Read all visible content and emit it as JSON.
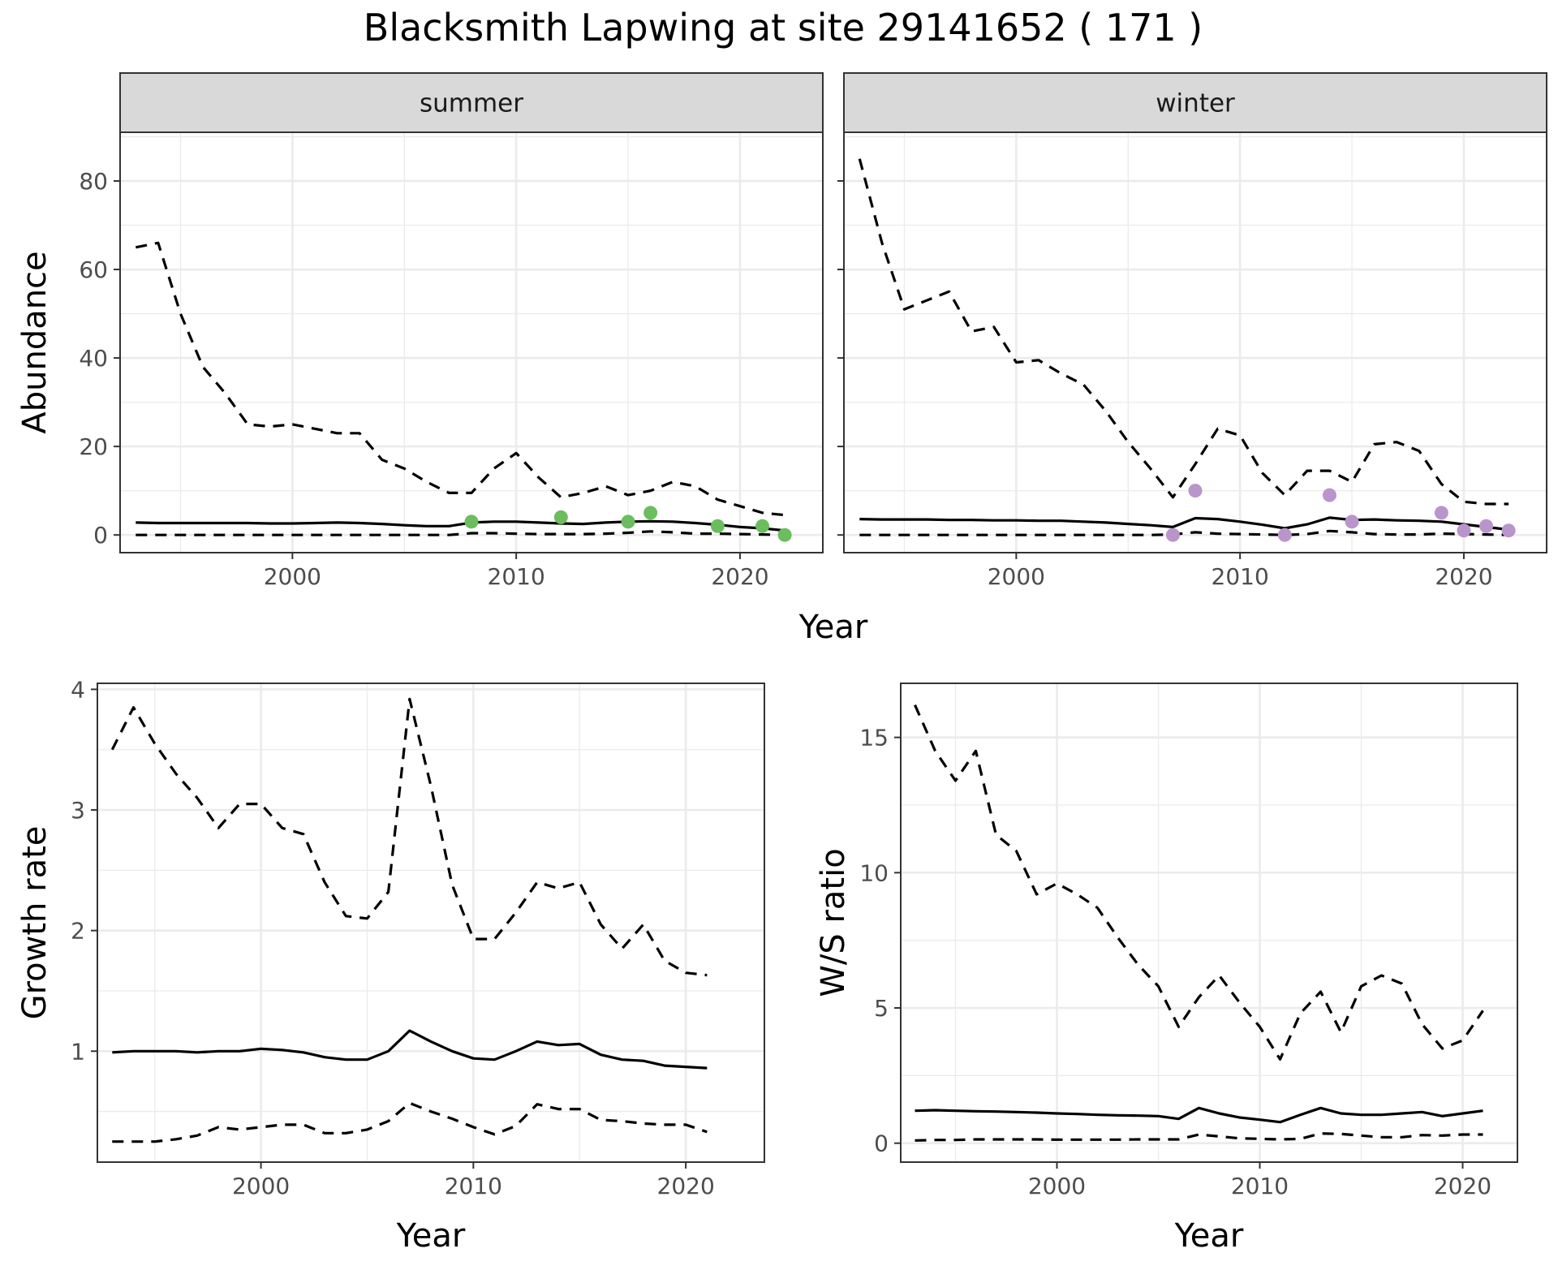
{
  "title": "Blacksmith Lapwing at site 29141652 ( 171 )",
  "colors": {
    "summer_points": "#6bbd5e",
    "winter_points": "#b995cc",
    "lines": "#000000"
  },
  "chart_data": [
    {
      "id": "abundance",
      "type": "line",
      "facets": [
        "summer",
        "winter"
      ],
      "xlabel": "Year",
      "ylabel": "Abundance",
      "xlim": [
        1992.3,
        2023.7
      ],
      "ylim": [
        -4,
        91
      ],
      "xticks": [
        2000,
        2010,
        2020
      ],
      "yticks": [
        0,
        20,
        40,
        60,
        80
      ],
      "grid": true,
      "panels": [
        {
          "facet": "summer",
          "x": [
            1993,
            1994,
            1995,
            1996,
            1997,
            1998,
            1999,
            2000,
            2001,
            2002,
            2003,
            2004,
            2005,
            2006,
            2007,
            2008,
            2009,
            2010,
            2011,
            2012,
            2013,
            2014,
            2015,
            2016,
            2017,
            2018,
            2019,
            2020,
            2021,
            2022
          ],
          "mean": [
            2.8,
            2.7,
            2.7,
            2.7,
            2.7,
            2.7,
            2.6,
            2.6,
            2.7,
            2.8,
            2.7,
            2.5,
            2.2,
            2.0,
            2.0,
            2.8,
            3.0,
            3.0,
            2.8,
            2.6,
            2.5,
            2.8,
            3.0,
            3.1,
            3.0,
            2.7,
            2.3,
            1.8,
            1.5,
            1.0
          ],
          "upper": [
            65,
            66,
            50,
            38,
            32,
            25,
            24.5,
            25,
            24,
            23,
            23,
            17,
            15,
            12,
            9.5,
            9.5,
            15,
            18.5,
            13,
            8.5,
            9.5,
            11,
            9,
            10,
            12,
            11,
            8,
            6.5,
            5,
            4.5
          ],
          "lower": [
            0,
            0,
            0,
            0,
            0,
            0,
            0,
            0,
            0,
            0,
            0,
            0,
            0,
            0,
            0,
            0.4,
            0.4,
            0.3,
            0.2,
            0.2,
            0.2,
            0.3,
            0.5,
            0.8,
            0.6,
            0.3,
            0.3,
            0.2,
            0.1,
            0.0
          ],
          "observed_x": [
            2008,
            2012,
            2015,
            2016,
            2019,
            2021,
            2022
          ],
          "observed_y": [
            3,
            4,
            3,
            5,
            2,
            2,
            0
          ]
        },
        {
          "facet": "winter",
          "x": [
            1993,
            1994,
            1995,
            1996,
            1997,
            1998,
            1999,
            2000,
            2001,
            2002,
            2003,
            2004,
            2005,
            2006,
            2007,
            2008,
            2009,
            2010,
            2011,
            2012,
            2013,
            2014,
            2015,
            2016,
            2017,
            2018,
            2019,
            2020,
            2021,
            2022
          ],
          "mean": [
            3.6,
            3.5,
            3.5,
            3.5,
            3.4,
            3.4,
            3.3,
            3.3,
            3.2,
            3.2,
            3.0,
            2.8,
            2.5,
            2.2,
            1.8,
            3.8,
            3.6,
            3.0,
            2.3,
            1.5,
            2.4,
            3.9,
            3.4,
            3.5,
            3.3,
            3.2,
            3.0,
            2.4,
            1.8,
            1.2
          ],
          "upper": [
            85,
            66,
            51,
            53,
            55,
            46,
            47,
            39,
            39.5,
            36.5,
            34,
            28,
            21,
            15,
            8.5,
            16,
            24,
            22.5,
            14,
            9,
            14.5,
            14.5,
            12,
            20.5,
            21,
            19,
            11.5,
            7.5,
            7,
            7
          ],
          "lower": [
            0,
            0,
            0,
            0,
            0,
            0,
            0,
            0,
            0,
            0,
            0,
            0,
            0,
            0,
            0.1,
            0.6,
            0.3,
            0.2,
            0.1,
            0.0,
            0.2,
            0.9,
            0.6,
            0.2,
            0.1,
            0.1,
            0.3,
            0.2,
            0.1,
            0.0
          ],
          "observed_x": [
            2007,
            2008,
            2012,
            2014,
            2015,
            2019,
            2020,
            2021,
            2022
          ],
          "observed_y": [
            0,
            10,
            0,
            9,
            3,
            5,
            1,
            2,
            1
          ]
        }
      ]
    },
    {
      "id": "growth",
      "type": "line",
      "xlabel": "Year",
      "ylabel": "Growth rate",
      "xlim": [
        1992.3,
        2023.7
      ],
      "ylim": [
        0.08,
        4.05
      ],
      "xticks": [
        2000,
        2010,
        2020
      ],
      "yticks": [
        1,
        2,
        3,
        4
      ],
      "grid": true,
      "x": [
        1993,
        1994,
        1995,
        1996,
        1997,
        1998,
        1999,
        2000,
        2001,
        2002,
        2003,
        2004,
        2005,
        2006,
        2007,
        2008,
        2009,
        2010,
        2011,
        2012,
        2013,
        2014,
        2015,
        2016,
        2017,
        2018,
        2019,
        2020,
        2021
      ],
      "mean": [
        0.99,
        1.0,
        1.0,
        1.0,
        0.99,
        1.0,
        1.0,
        1.02,
        1.01,
        0.99,
        0.95,
        0.93,
        0.93,
        1.0,
        1.17,
        1.08,
        1.0,
        0.94,
        0.93,
        1.0,
        1.08,
        1.05,
        1.06,
        0.97,
        0.93,
        0.92,
        0.88,
        0.87,
        0.86
      ],
      "upper": [
        3.5,
        3.85,
        3.55,
        3.3,
        3.1,
        2.85,
        3.05,
        3.05,
        2.85,
        2.8,
        2.4,
        2.12,
        2.1,
        2.32,
        3.92,
        3.2,
        2.38,
        1.93,
        1.93,
        2.15,
        2.4,
        2.35,
        2.4,
        2.05,
        1.85,
        2.05,
        1.75,
        1.65,
        1.63
      ],
      "lower": [
        0.25,
        0.25,
        0.25,
        0.27,
        0.3,
        0.37,
        0.35,
        0.37,
        0.39,
        0.39,
        0.32,
        0.32,
        0.35,
        0.42,
        0.57,
        0.5,
        0.44,
        0.37,
        0.31,
        0.38,
        0.56,
        0.52,
        0.52,
        0.43,
        0.42,
        0.4,
        0.39,
        0.39,
        0.33
      ]
    },
    {
      "id": "ws_ratio",
      "type": "line",
      "xlabel": "Year",
      "ylabel": "W/S ratio",
      "xlim": [
        1992.3,
        2022.7
      ],
      "ylim": [
        -0.7,
        17
      ],
      "xticks": [
        2000,
        2010,
        2020
      ],
      "yticks": [
        0,
        5,
        10,
        15
      ],
      "grid": true,
      "x": [
        1993,
        1994,
        1995,
        1996,
        1997,
        1998,
        1999,
        2000,
        2001,
        2002,
        2003,
        2004,
        2005,
        2006,
        2007,
        2008,
        2009,
        2010,
        2011,
        2012,
        2013,
        2014,
        2015,
        2016,
        2017,
        2018,
        2019,
        2020,
        2021
      ],
      "mean": [
        1.2,
        1.22,
        1.2,
        1.18,
        1.17,
        1.15,
        1.13,
        1.1,
        1.08,
        1.05,
        1.03,
        1.02,
        1.0,
        0.9,
        1.3,
        1.1,
        0.95,
        0.87,
        0.78,
        1.05,
        1.3,
        1.1,
        1.05,
        1.05,
        1.1,
        1.15,
        1.0,
        1.1,
        1.2
      ],
      "upper": [
        16.2,
        14.5,
        13.4,
        14.5,
        11.4,
        10.8,
        9.2,
        9.6,
        9.2,
        8.7,
        7.6,
        6.6,
        5.8,
        4.3,
        5.4,
        6.2,
        5.2,
        4.3,
        3.1,
        4.8,
        5.6,
        4.1,
        5.8,
        6.2,
        5.9,
        4.4,
        3.5,
        3.8,
        4.9
      ],
      "lower": [
        0.1,
        0.12,
        0.12,
        0.14,
        0.14,
        0.14,
        0.14,
        0.13,
        0.13,
        0.13,
        0.13,
        0.14,
        0.14,
        0.14,
        0.32,
        0.25,
        0.18,
        0.16,
        0.14,
        0.16,
        0.36,
        0.34,
        0.28,
        0.22,
        0.22,
        0.3,
        0.28,
        0.32,
        0.32
      ]
    }
  ]
}
